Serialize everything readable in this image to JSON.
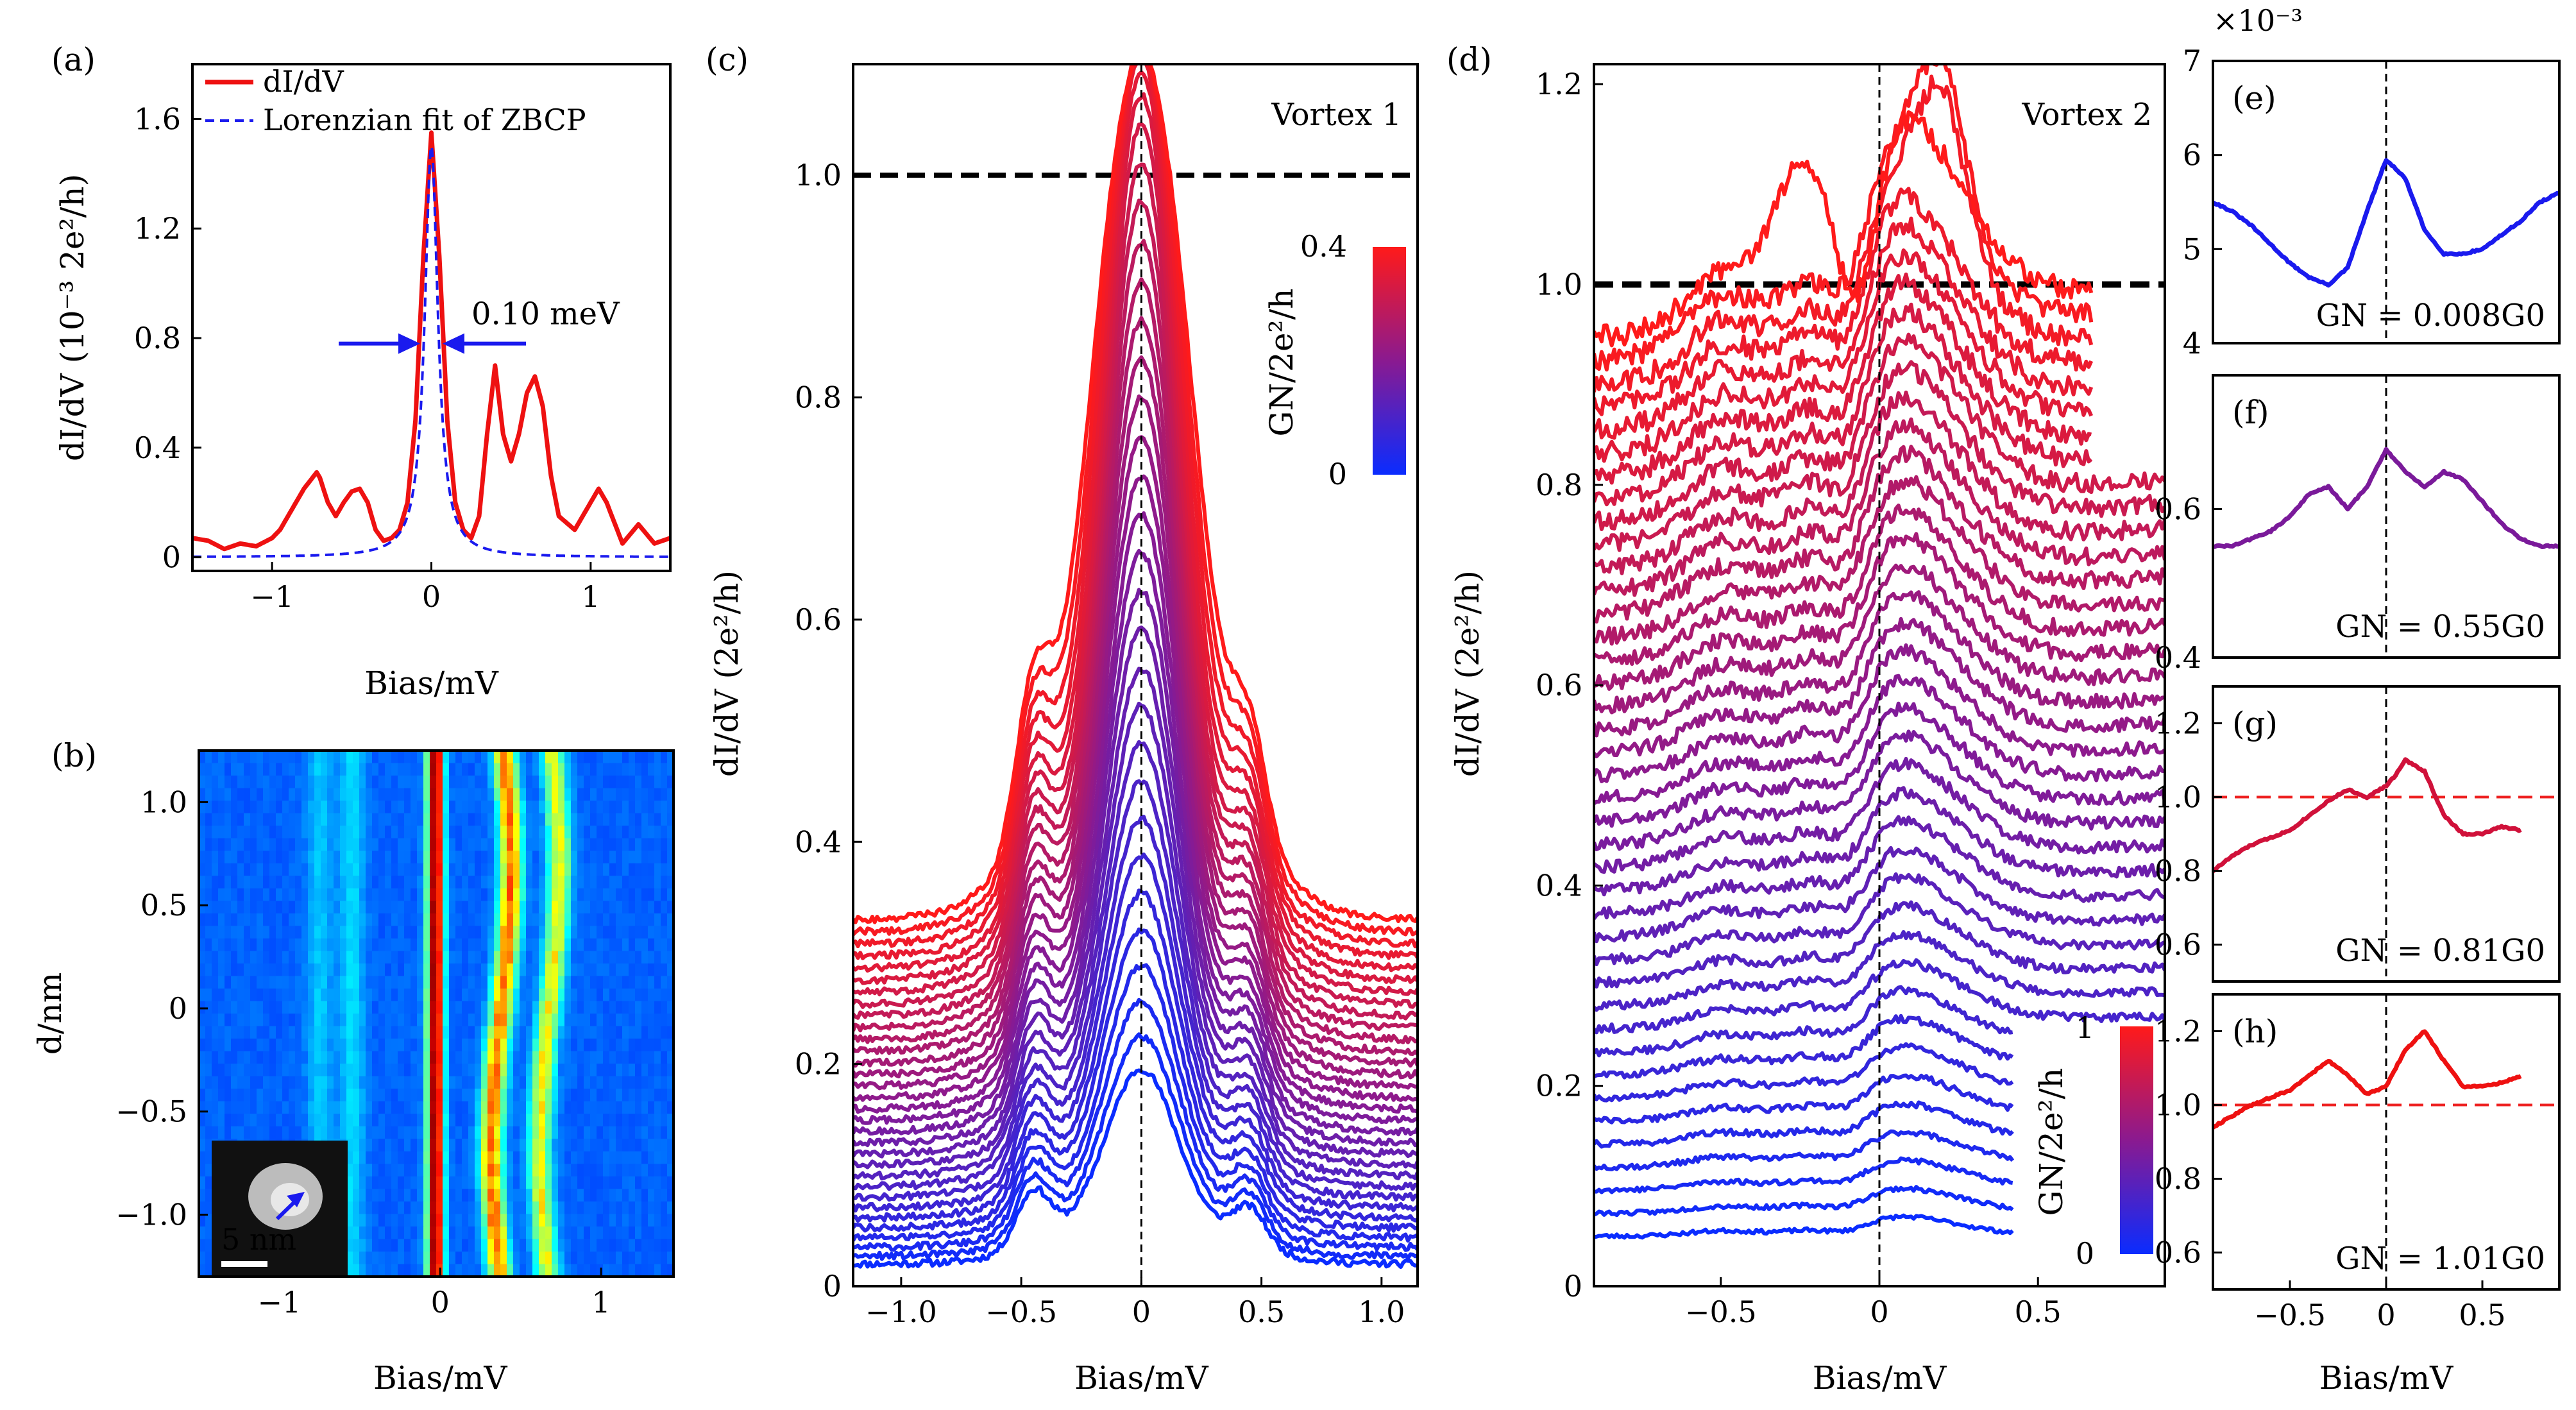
{
  "chart_data": [
    {
      "panel": "(a)",
      "type": "line",
      "xlabel": "Bias/mV",
      "ylabel": "dI/dV (10⁻³ 2e²/h)",
      "xlim": [
        -1.5,
        1.5
      ],
      "ylim": [
        -0.05,
        1.8
      ],
      "xticks": [
        "−1",
        "0",
        "1"
      ],
      "yticks": [
        "0",
        "0.4",
        "0.8",
        "1.2",
        "1.6"
      ],
      "legend": [
        "dI/dV",
        "Lorenzian fit of ZBCP"
      ],
      "legend_position": "top",
      "annotation": "0.10 meV",
      "series": [
        {
          "name": "dI/dV",
          "color": "#ee1111",
          "x": [
            -1.5,
            -1.4,
            -1.3,
            -1.2,
            -1.1,
            -1.0,
            -0.95,
            -0.9,
            -0.8,
            -0.72,
            -0.7,
            -0.65,
            -0.6,
            -0.55,
            -0.5,
            -0.45,
            -0.4,
            -0.35,
            -0.3,
            -0.25,
            -0.2,
            -0.15,
            -0.1,
            -0.05,
            0,
            0.05,
            0.1,
            0.15,
            0.2,
            0.25,
            0.3,
            0.35,
            0.4,
            0.45,
            0.5,
            0.55,
            0.6,
            0.65,
            0.7,
            0.75,
            0.8,
            0.9,
            1.0,
            1.05,
            1.1,
            1.2,
            1.3,
            1.4,
            1.5
          ],
          "y": [
            0.07,
            0.06,
            0.03,
            0.05,
            0.04,
            0.07,
            0.1,
            0.15,
            0.25,
            0.31,
            0.29,
            0.2,
            0.15,
            0.2,
            0.24,
            0.25,
            0.2,
            0.1,
            0.06,
            0.07,
            0.1,
            0.2,
            0.5,
            1.1,
            1.55,
            1.1,
            0.5,
            0.2,
            0.1,
            0.07,
            0.15,
            0.45,
            0.7,
            0.45,
            0.35,
            0.45,
            0.6,
            0.66,
            0.55,
            0.3,
            0.15,
            0.1,
            0.2,
            0.25,
            0.2,
            0.05,
            0.12,
            0.05,
            0.07
          ]
        },
        {
          "name": "Lorenzian fit of ZBCP",
          "color": "#1a1aee",
          "dashed": true,
          "center": 0,
          "fwhm": 0.1,
          "amplitude": 1.5
        }
      ]
    },
    {
      "panel": "(b)",
      "type": "heatmap",
      "xlabel": "Bias/mV",
      "ylabel": "d/nm",
      "xlim": [
        -1.5,
        1.45
      ],
      "ylim": [
        -1.3,
        1.25
      ],
      "xticks": [
        "−1",
        "0",
        "1"
      ],
      "yticks": [
        "−1.0",
        "−0.5",
        "0",
        "0.5",
        "1.0"
      ],
      "inset_label": "5 nm",
      "peak_bias": [
        -0.03,
        0.38,
        0.68,
        -0.55,
        -0.75
      ]
    },
    {
      "panel": "(c)",
      "type": "line",
      "title": "Vortex 1",
      "xlabel": "Bias/mV",
      "ylabel": "dI/dV (2e²/h)",
      "xlim": [
        -1.2,
        1.15
      ],
      "ylim": [
        0,
        1.1
      ],
      "xticks": [
        "−1.0",
        "−0.5",
        "0",
        "0.5",
        "1.0"
      ],
      "yticks": [
        "0",
        "0.2",
        "0.4",
        "0.6",
        "0.8",
        "1.0"
      ],
      "reference_line": 1.0,
      "colorbar": {
        "label": "GN/2e²/h",
        "min": "0",
        "max": "0.4"
      },
      "n_curves": 32,
      "curve_range": {
        "zbp_min": 0.15,
        "zbp_max": 1.02,
        "edge_min": 0.02,
        "edge_max": 0.33
      }
    },
    {
      "panel": "(d)",
      "type": "line",
      "title": "Vortex 2",
      "xlabel": "Bias/mV",
      "ylabel": "dI/dV (2e²/h)",
      "xlim": [
        -0.9,
        0.9
      ],
      "ylim": [
        0,
        1.22
      ],
      "xticks": [
        "−0.5",
        "0",
        "0.5"
      ],
      "yticks": [
        "0",
        "0.2",
        "0.4",
        "0.6",
        "0.8",
        "1.0",
        "1.2"
      ],
      "reference_line": 1.0,
      "colorbar": {
        "label": "GN/2e²/h",
        "min": "0",
        "max": "1"
      },
      "n_curves": 40,
      "curve_range": {
        "base_min": 0.05,
        "base_max": 0.98
      }
    },
    {
      "panel": "(e)",
      "type": "line",
      "multiplier": "×10⁻³",
      "xlim": [
        -0.9,
        0.9
      ],
      "ylim": [
        4,
        7
      ],
      "yticks": [
        "4",
        "5",
        "6",
        "7"
      ],
      "label": "GN = 0.008G0",
      "color": "#1a1aee",
      "x": [
        -0.9,
        -0.8,
        -0.7,
        -0.6,
        -0.5,
        -0.4,
        -0.3,
        -0.2,
        -0.1,
        0,
        0.1,
        0.2,
        0.3,
        0.4,
        0.5,
        0.6,
        0.7,
        0.8,
        0.9
      ],
      "y": [
        5.5,
        5.4,
        5.25,
        5.05,
        4.85,
        4.7,
        4.62,
        4.8,
        5.4,
        5.95,
        5.75,
        5.2,
        4.95,
        4.95,
        5.0,
        5.15,
        5.3,
        5.5,
        5.6
      ]
    },
    {
      "panel": "(f)",
      "type": "line",
      "xlim": [
        -0.9,
        0.9
      ],
      "ylim": [
        0.4,
        0.78
      ],
      "yticks": [
        "0.4",
        "0.6"
      ],
      "label": "GN = 0.55G0",
      "color": "#7a1a9a",
      "x": [
        -0.9,
        -0.8,
        -0.7,
        -0.6,
        -0.5,
        -0.4,
        -0.3,
        -0.2,
        -0.1,
        0,
        0.1,
        0.2,
        0.3,
        0.4,
        0.5,
        0.6,
        0.7,
        0.8,
        0.9
      ],
      "y": [
        0.55,
        0.55,
        0.56,
        0.57,
        0.59,
        0.62,
        0.63,
        0.6,
        0.63,
        0.68,
        0.65,
        0.63,
        0.65,
        0.64,
        0.61,
        0.58,
        0.56,
        0.55,
        0.55
      ]
    },
    {
      "panel": "(g)",
      "type": "line",
      "xlim": [
        -0.9,
        0.9
      ],
      "ylim": [
        0.5,
        1.3
      ],
      "yticks": [
        "0.6",
        "0.8",
        "1.0",
        "1.2"
      ],
      "reference_line": 1.0,
      "label": "GN = 0.81G0",
      "color": "#d0113a",
      "x": [
        -0.9,
        -0.8,
        -0.7,
        -0.6,
        -0.5,
        -0.4,
        -0.3,
        -0.2,
        -0.1,
        0,
        0.05,
        0.1,
        0.2,
        0.3,
        0.4,
        0.5,
        0.6,
        0.7
      ],
      "y": [
        0.8,
        0.84,
        0.87,
        0.89,
        0.91,
        0.95,
        0.99,
        1.02,
        1.0,
        1.03,
        1.06,
        1.1,
        1.07,
        0.95,
        0.9,
        0.9,
        0.92,
        0.91
      ]
    },
    {
      "panel": "(h)",
      "type": "line",
      "xlim": [
        -0.9,
        0.9
      ],
      "ylim": [
        0.5,
        1.3
      ],
      "xticks": [
        "−0.5",
        "0",
        "0.5"
      ],
      "yticks": [
        "0.6",
        "0.8",
        "1.0",
        "1.2"
      ],
      "xlabel": "Bias/mV",
      "reference_line": 1.0,
      "label": "GN = 1.01G0",
      "color": "#ee1111",
      "x": [
        -0.9,
        -0.8,
        -0.7,
        -0.6,
        -0.5,
        -0.4,
        -0.3,
        -0.2,
        -0.1,
        0,
        0.1,
        0.2,
        0.3,
        0.4,
        0.5,
        0.6,
        0.7
      ],
      "y": [
        0.94,
        0.97,
        1.0,
        1.02,
        1.04,
        1.08,
        1.12,
        1.08,
        1.03,
        1.05,
        1.15,
        1.2,
        1.12,
        1.05,
        1.05,
        1.06,
        1.08
      ]
    }
  ]
}
